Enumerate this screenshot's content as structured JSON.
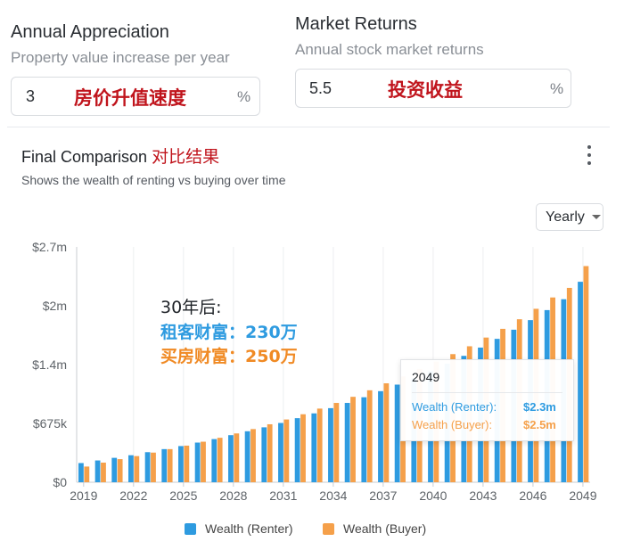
{
  "appreciation": {
    "title": "Annual Appreciation",
    "subtitle": "Property value increase per year",
    "value": "3",
    "unit": "%",
    "overlay_cn": "房价升值速度"
  },
  "market": {
    "title": "Market Returns",
    "subtitle": "Annual stock market returns",
    "value": "5.5",
    "unit": "%",
    "overlay_cn": "投资收益"
  },
  "comparison": {
    "title": "Final Comparison",
    "title_cn": "对比结果",
    "subtitle": "Shows the wealth of renting vs buying over time",
    "period_select": "Yearly"
  },
  "annotation": {
    "line1": "30年后:",
    "line2": "租客财富：230万",
    "line3": "买房财富：250万"
  },
  "tooltip": {
    "year": "2049",
    "renter_label": "Wealth (Renter):",
    "renter_value": "$2.3m",
    "buyer_label": "Wealth (Buyer):",
    "buyer_value": "$2.5m"
  },
  "colors": {
    "renter": "#2e9be0",
    "buyer": "#f5a04a",
    "annotation_renter": "#2e9be0",
    "annotation_buyer": "#f08a24",
    "overlay_red": "#c0141c"
  },
  "chart_data": {
    "type": "bar",
    "x": [
      2019,
      2020,
      2021,
      2022,
      2023,
      2024,
      2025,
      2026,
      2027,
      2028,
      2029,
      2030,
      2031,
      2032,
      2033,
      2034,
      2035,
      2036,
      2037,
      2038,
      2039,
      2040,
      2041,
      2042,
      2043,
      2044,
      2045,
      2046,
      2047,
      2048,
      2049
    ],
    "x_tick_labels": [
      "2019",
      "2022",
      "2025",
      "2028",
      "2031",
      "2034",
      "2037",
      "2040",
      "2043",
      "2046",
      "2049"
    ],
    "y_tick_labels": [
      "$0",
      "$675k",
      "$1.4m",
      "$2m",
      "$2.7m"
    ],
    "y_tick_values": [
      0,
      675000,
      1350000,
      2025000,
      2700000
    ],
    "ylim": [
      0,
      2700000
    ],
    "series": [
      {
        "name": "Wealth (Renter)",
        "values": [
          220000,
          250000,
          280000,
          310000,
          345000,
          380000,
          415000,
          455000,
          495000,
          540000,
          585000,
          630000,
          680000,
          735000,
          790000,
          850000,
          910000,
          975000,
          1045000,
          1120000,
          1195000,
          1275000,
          1360000,
          1450000,
          1545000,
          1645000,
          1750000,
          1860000,
          1975000,
          2100000,
          2300000
        ]
      },
      {
        "name": "Wealth (Buyer)",
        "values": [
          180000,
          225000,
          265000,
          300000,
          340000,
          380000,
          420000,
          465000,
          510000,
          560000,
          610000,
          665000,
          720000,
          780000,
          845000,
          910000,
          980000,
          1055000,
          1135000,
          1215000,
          1300000,
          1385000,
          1470000,
          1560000,
          1660000,
          1760000,
          1870000,
          1990000,
          2120000,
          2230000,
          2480000
        ]
      }
    ],
    "legend_position": "bottom-center",
    "grid": "vertical"
  }
}
